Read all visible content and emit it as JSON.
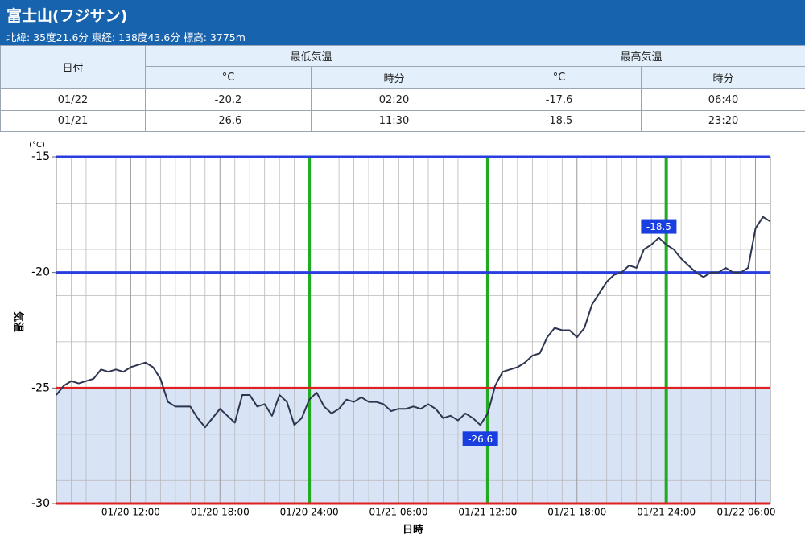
{
  "header": {
    "title": "富士山(フジサン)",
    "subtitle": "北緯: 35度21.6分 東経: 138度43.6分 標高: 3775m"
  },
  "table": {
    "date_header": "日付",
    "groups": [
      "最低気温",
      "最高気温"
    ],
    "subheaders": [
      "°C",
      "時分",
      "°C",
      "時分"
    ],
    "rows": [
      [
        "01/22",
        -20.2,
        "02:20",
        -17.6,
        "06:40"
      ],
      [
        "01/21",
        -26.6,
        "11:30",
        -18.5,
        "23:20"
      ]
    ]
  },
  "chart_data": {
    "type": "line",
    "unit": "(°C)",
    "ylabel": "気温",
    "xlabel": "日時",
    "xlim": [
      7,
      55
    ],
    "ylim": [
      -30,
      -15
    ],
    "xticks": [
      {
        "value": 12,
        "label": "01/20 12:00"
      },
      {
        "value": 18,
        "label": "01/20 18:00"
      },
      {
        "value": 24,
        "label": "01/20 24:00"
      },
      {
        "value": 30,
        "label": "01/21 06:00"
      },
      {
        "value": 36,
        "label": "01/21 12:00"
      },
      {
        "value": 42,
        "label": "01/21 18:00"
      },
      {
        "value": 48,
        "label": "01/21 24:00"
      },
      {
        "value": 54,
        "label": "01/22 06:00"
      }
    ],
    "minor_xgrid": [
      8,
      9,
      10,
      11,
      13,
      14,
      15,
      16,
      17,
      19,
      20,
      21,
      22,
      23,
      25,
      26,
      27,
      28,
      29,
      31,
      32,
      33,
      34,
      35,
      37,
      38,
      39,
      40,
      41,
      43,
      44,
      45,
      46,
      47,
      49,
      50,
      51,
      52,
      53
    ],
    "yticks": [
      -30,
      -25,
      -20,
      -15
    ],
    "minor_ygrid": [
      -29,
      -27,
      -23,
      -21,
      -19,
      -17
    ],
    "ref_lines": [
      {
        "value": -15,
        "color": "#2a3ee0"
      },
      {
        "value": -20,
        "color": "#2a3ee0"
      },
      {
        "value": -25,
        "color": "#e02020"
      },
      {
        "value": -30,
        "color": "#e02020"
      }
    ],
    "fill_band": {
      "from": -30,
      "to": -25,
      "color": "#d8e4f5"
    },
    "vlines": [
      {
        "value": 24,
        "color": "#22aa22"
      },
      {
        "value": 36,
        "color": "#22aa22"
      },
      {
        "value": 48,
        "color": "#22aa22"
      }
    ],
    "x": [
      7,
      7.5,
      8,
      8.5,
      9,
      9.5,
      10,
      10.5,
      11,
      11.5,
      12,
      12.5,
      13,
      13.5,
      14,
      14.5,
      15,
      15.5,
      16,
      16.5,
      17,
      17.5,
      18,
      18.5,
      19,
      19.5,
      20,
      20.5,
      21,
      21.5,
      22,
      22.5,
      23,
      23.5,
      24,
      24.5,
      25,
      25.5,
      26,
      26.5,
      27,
      27.5,
      28,
      28.5,
      29,
      29.5,
      30,
      30.5,
      31,
      31.5,
      32,
      32.5,
      33,
      33.5,
      34,
      34.5,
      35,
      35.5,
      36,
      36.5,
      37,
      37.5,
      38,
      38.5,
      39,
      39.5,
      40,
      40.5,
      41,
      41.5,
      42,
      42.5,
      43,
      43.5,
      44,
      44.5,
      45,
      45.5,
      46,
      46.5,
      47,
      47.5,
      48,
      48.5,
      49,
      49.5,
      50,
      50.5,
      51,
      51.5,
      52,
      52.5,
      53,
      53.5,
      54,
      54.5,
      55
    ],
    "series": [
      {
        "name": "気温",
        "color": "#2e3550",
        "values": [
          -25.3,
          -24.9,
          -24.7,
          -24.8,
          -24.7,
          -24.6,
          -24.2,
          -24.3,
          -24.2,
          -24.3,
          -24.1,
          -24.0,
          -23.9,
          -24.1,
          -24.6,
          -25.6,
          -25.8,
          -25.8,
          -25.8,
          -26.3,
          -26.7,
          -26.3,
          -25.9,
          -26.2,
          -26.5,
          -25.3,
          -25.3,
          -25.8,
          -25.7,
          -26.2,
          -25.3,
          -25.6,
          -26.6,
          -26.3,
          -25.5,
          -25.2,
          -25.8,
          -26.1,
          -25.9,
          -25.5,
          -25.6,
          -25.4,
          -25.6,
          -25.6,
          -25.7,
          -26.0,
          -25.9,
          -25.9,
          -25.8,
          -25.9,
          -25.7,
          -25.9,
          -26.3,
          -26.2,
          -26.4,
          -26.1,
          -26.3,
          -26.6,
          -26.1,
          -24.9,
          -24.3,
          -24.2,
          -24.1,
          -23.9,
          -23.6,
          -23.5,
          -22.8,
          -22.4,
          -22.5,
          -22.5,
          -22.8,
          -22.4,
          -21.4,
          -20.9,
          -20.4,
          -20.1,
          -20.0,
          -19.7,
          -19.8,
          -19.0,
          -18.8,
          -18.5,
          -18.8,
          -19.0,
          -19.4,
          -19.7,
          -20.0,
          -20.2,
          -20.0,
          -20.0,
          -19.8,
          -20.0,
          -20.0,
          -19.8,
          -18.1,
          -17.6,
          -17.8
        ]
      }
    ],
    "annotations": [
      {
        "x": 35.5,
        "value": -26.6,
        "position": "below",
        "color": "#1a3fe0"
      },
      {
        "x": 47.5,
        "value": -18.5,
        "position": "above",
        "color": "#1a3fe0"
      }
    ]
  }
}
